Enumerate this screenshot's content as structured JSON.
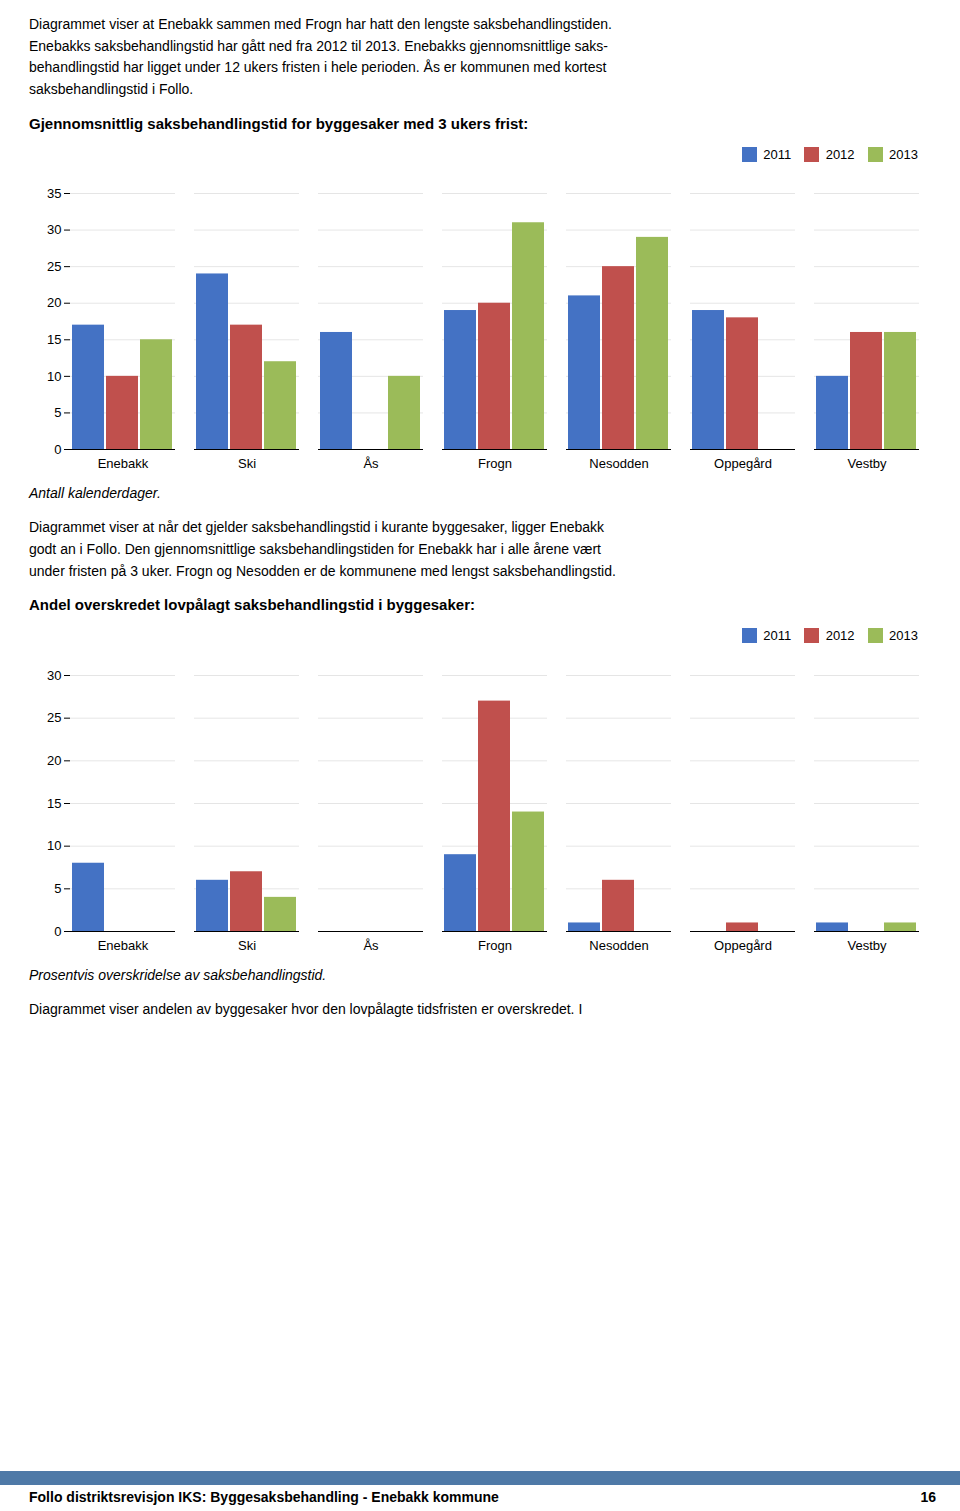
{
  "top_text": "Diagrammet viser at Enebakk sammen med Frogn har hatt den lengste saksbehandlingstiden.\nEnebakks saksbehandlingstid har gått ned fra 2012 til 2013. Enebakks gjennomsnittlige saks-\nbehandlingstid har ligget under 12 ukers fristen i hele perioden. Ås er kommunen med kortest\nsaksbehandlingstid i Follo.",
  "middle_text": "Diagrammet viser at når det gjelder saksbehandlingstid i kurante byggesaker, ligger Enebakk\ngodt an i Follo. Den gjennomsnittlige saksbehandlingstiden for Enebakk har i alle årene vært\nunder fristen på 3 uker. Frogn og Nesodden er de kommunene med lengst saksbehandlingstid.",
  "bottom_text": "Diagrammet viser andelen av byggesaker hvor den lovpålagte tidsfristen er overskredet. I",
  "footer_text": "Follo distriktsrevisjon IKS: Byggesaksbehandling - Enebakk kommune",
  "footer_page": "16",
  "chart_data": [
    {
      "type": "bar",
      "title": "Gjennomsnittlig saksbehandlingstid for byggesaker med 3 ukers frist:",
      "caption": "Antall kalenderdager.",
      "categories": [
        "Enebakk",
        "Ski",
        "Ås",
        "Frogn",
        "Nesodden",
        "Oppegård",
        "Vestby"
      ],
      "series": [
        {
          "name": "2011",
          "color": "#4472C4",
          "values": [
            17,
            24,
            16,
            19,
            21,
            19,
            10
          ]
        },
        {
          "name": "2012",
          "color": "#C0504D",
          "values": [
            10,
            17,
            0,
            20,
            25,
            18,
            16
          ]
        },
        {
          "name": "2013",
          "color": "#9BBB59",
          "values": [
            15,
            12,
            10,
            31,
            29,
            0,
            16
          ]
        }
      ],
      "ylim": [
        0,
        35
      ],
      "yticks": [
        0,
        5,
        10,
        15,
        20,
        25,
        30,
        35
      ],
      "grid": true,
      "legend": "right"
    },
    {
      "type": "bar",
      "title": "Andel overskredet lovpålagt saksbehandlingstid i byggesaker:",
      "caption": "Prosentvis overskridelse av saksbehandlingstid.",
      "categories": [
        "Enebakk",
        "Ski",
        "Ås",
        "Frogn",
        "Nesodden",
        "Oppegård",
        "Vestby"
      ],
      "series": [
        {
          "name": "2011",
          "color": "#4472C4",
          "values": [
            8,
            6,
            0,
            9,
            1,
            0,
            1
          ]
        },
        {
          "name": "2012",
          "color": "#C0504D",
          "values": [
            0,
            7,
            0,
            27,
            6,
            1,
            0
          ]
        },
        {
          "name": "2013",
          "color": "#9BBB59",
          "values": [
            0,
            4,
            0,
            14,
            0,
            0,
            1
          ]
        }
      ],
      "ylim": [
        0,
        30
      ],
      "yticks": [
        0,
        5,
        10,
        15,
        20,
        25,
        30
      ],
      "grid": true,
      "legend": "right"
    }
  ]
}
